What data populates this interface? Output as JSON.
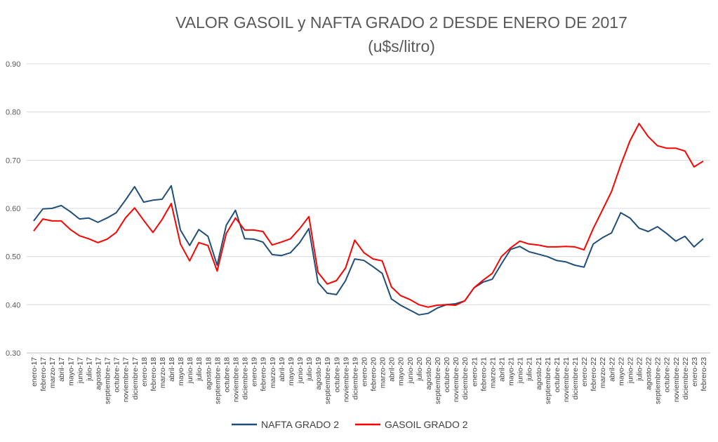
{
  "chart_data": {
    "type": "line",
    "title": "VALOR GASOIL y NAFTA GRADO 2 DESDE ENERO DE 2017",
    "subtitle": "(u$s/litro)",
    "xlabel": "",
    "ylabel": "",
    "ylim": [
      0.3,
      0.9
    ],
    "yticks": [
      "0.30",
      "0.40",
      "0.50",
      "0.60",
      "0.70",
      "0.80",
      "0.90"
    ],
    "grid": true,
    "legend_position": "bottom",
    "categories": [
      "enero-17",
      "febrero-17",
      "marzo-17",
      "abril-17",
      "mayo-17",
      "junio-17",
      "julio-17",
      "agosto-17",
      "septiembre-17",
      "octubre-17",
      "noviembre-17",
      "diciembre-17",
      "enero-18",
      "febrero-18",
      "marzo-18",
      "abril-18",
      "mayo-18",
      "junio-18",
      "julio-18",
      "agosto-18",
      "septiembre-18",
      "octubre-18",
      "noviembre-18",
      "diciembre-18",
      "enero-19",
      "febrero-19",
      "marzo-19",
      "abril-19",
      "mayo-19",
      "junio-19",
      "julio-19",
      "agosto-19",
      "septiembre-19",
      "octubre-19",
      "noviembre-19",
      "diciembre-19",
      "enero-20",
      "febrero-20",
      "marzo-20",
      "abril-20",
      "mayo-20",
      "junio-20",
      "julio-20",
      "agosto-20",
      "septiembre-20",
      "octubre-20",
      "noviembre-20",
      "diciembre-20",
      "enero-21",
      "febrero-21",
      "marzo-21",
      "abril-21",
      "mayo-21",
      "junio-21",
      "julio-21",
      "agosto-21",
      "septiembre-21",
      "octubre-21",
      "noviembre-21",
      "diciembre-21",
      "enero-22",
      "febrero-22",
      "marzo-22",
      "abril-22",
      "mayo-22",
      "junio-22",
      "julio-22",
      "agosto-22",
      "septiembre-22",
      "octubre-22",
      "noviembre-22",
      "diciembre-22",
      "enero-23",
      "febrero-23"
    ],
    "series": [
      {
        "name": "NAFTA GRADO 2",
        "color": "#1F4E79",
        "values": [
          0.574,
          0.599,
          0.6,
          0.606,
          0.593,
          0.578,
          0.58,
          0.571,
          0.58,
          0.591,
          0.617,
          0.645,
          0.613,
          0.617,
          0.619,
          0.647,
          0.555,
          0.523,
          0.556,
          0.542,
          0.482,
          0.565,
          0.596,
          0.537,
          0.536,
          0.53,
          0.504,
          0.502,
          0.508,
          0.529,
          0.558,
          0.446,
          0.424,
          0.421,
          0.45,
          0.495,
          0.492,
          0.479,
          0.465,
          0.412,
          0.399,
          0.389,
          0.379,
          0.382,
          0.393,
          0.4,
          0.402,
          0.408,
          0.435,
          0.447,
          0.453,
          0.485,
          0.515,
          0.521,
          0.51,
          0.505,
          0.5,
          0.492,
          0.489,
          0.482,
          0.478,
          0.526,
          0.539,
          0.549,
          0.591,
          0.58,
          0.559,
          0.552,
          0.562,
          0.548,
          0.532,
          0.542,
          0.52,
          0.537
        ]
      },
      {
        "name": "GASOIL GRADO 2",
        "color": "#FF0000",
        "values": [
          0.553,
          0.578,
          0.574,
          0.574,
          0.556,
          0.543,
          0.537,
          0.529,
          0.536,
          0.55,
          0.58,
          0.601,
          0.575,
          0.55,
          0.577,
          0.61,
          0.526,
          0.491,
          0.529,
          0.523,
          0.47,
          0.548,
          0.58,
          0.555,
          0.555,
          0.552,
          0.524,
          0.53,
          0.537,
          0.558,
          0.583,
          0.467,
          0.443,
          0.45,
          0.476,
          0.534,
          0.508,
          0.495,
          0.491,
          0.437,
          0.419,
          0.411,
          0.4,
          0.395,
          0.399,
          0.4,
          0.399,
          0.408,
          0.435,
          0.451,
          0.465,
          0.5,
          0.518,
          0.532,
          0.526,
          0.524,
          0.52,
          0.52,
          0.521,
          0.52,
          0.514,
          0.558,
          0.596,
          0.635,
          0.69,
          0.74,
          0.776,
          0.749,
          0.73,
          0.725,
          0.725,
          0.719,
          0.686,
          0.698
        ]
      }
    ]
  }
}
